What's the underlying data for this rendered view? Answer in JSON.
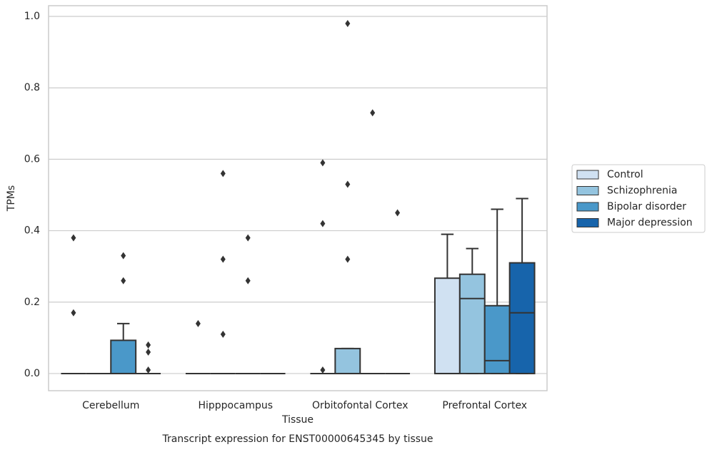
{
  "chart_data": {
    "type": "box",
    "caption": "Transcript expression for ENST00000645345 by tissue",
    "xlabel": "Tissue",
    "ylabel": "TPMs",
    "categories": [
      "Cerebellum",
      "Hipppocampus",
      "Orbitofontal Cortex",
      "Prefrontal Cortex"
    ],
    "ylim": [
      -0.048,
      1.03
    ],
    "yticks": [
      {
        "value": 0,
        "label": "0.0"
      },
      0.2,
      0.4,
      0.6,
      0.8,
      {
        "value": 1,
        "label": "1.0"
      }
    ],
    "grid": true,
    "legend": "right",
    "series": [
      {
        "name": "Control",
        "color": "#d0e1f2",
        "boxes": [
          {
            "whislo": 0,
            "q1": 0,
            "median": 0,
            "q3": 0,
            "whishi": 0,
            "outliers": [
              0.38,
              0.17
            ]
          },
          {
            "whislo": 0,
            "q1": 0,
            "median": 0,
            "q3": 0,
            "whishi": 0,
            "outliers": [
              0.14
            ]
          },
          {
            "whislo": 0,
            "q1": 0,
            "median": 0,
            "q3": 0,
            "whishi": 0,
            "outliers": [
              0.59,
              0.42,
              0.01
            ]
          },
          {
            "whislo": 0,
            "q1": 0,
            "median": 0,
            "q3": 0.267,
            "whishi": 0.39,
            "outliers": []
          }
        ]
      },
      {
        "name": "Schizophrenia",
        "color": "#94c4df",
        "boxes": [
          {
            "whislo": 0,
            "q1": 0,
            "median": 0,
            "q3": 0,
            "whishi": 0,
            "outliers": []
          },
          {
            "whislo": 0,
            "q1": 0,
            "median": 0,
            "q3": 0,
            "whishi": 0,
            "outliers": [
              0.56,
              0.32,
              0.11
            ]
          },
          {
            "whislo": 0,
            "q1": 0,
            "median": 0,
            "q3": 0.07,
            "whishi": 0.07,
            "outliers": [
              0.98,
              0.53,
              0.32
            ]
          },
          {
            "whislo": 0,
            "q1": 0,
            "median": 0.21,
            "q3": 0.278,
            "whishi": 0.35,
            "outliers": []
          }
        ]
      },
      {
        "name": "Bipolar disorder",
        "color": "#4a98c9",
        "boxes": [
          {
            "whislo": 0,
            "q1": 0,
            "median": 0,
            "q3": 0.093,
            "whishi": 0.14,
            "outliers": [
              0.33,
              0.26
            ]
          },
          {
            "whislo": 0,
            "q1": 0,
            "median": 0,
            "q3": 0,
            "whishi": 0,
            "outliers": [
              0.38,
              0.26
            ]
          },
          {
            "whislo": 0,
            "q1": 0,
            "median": 0,
            "q3": 0,
            "whishi": 0,
            "outliers": [
              0.73
            ]
          },
          {
            "whislo": 0,
            "q1": 0,
            "median": 0.036,
            "q3": 0.19,
            "whishi": 0.46,
            "outliers": []
          }
        ]
      },
      {
        "name": "Major depression",
        "color": "#1764ab",
        "boxes": [
          {
            "whislo": 0,
            "q1": 0,
            "median": 0,
            "q3": 0,
            "whishi": 0,
            "outliers": [
              0.08,
              0.06,
              0.01
            ]
          },
          {
            "whislo": 0,
            "q1": 0,
            "median": 0,
            "q3": 0,
            "whishi": 0,
            "outliers": []
          },
          {
            "whislo": 0,
            "q1": 0,
            "median": 0,
            "q3": 0,
            "whishi": 0,
            "outliers": [
              0.45
            ]
          },
          {
            "whislo": 0,
            "q1": 0,
            "median": 0.17,
            "q3": 0.31,
            "whishi": 0.49,
            "outliers": []
          }
        ]
      }
    ]
  }
}
